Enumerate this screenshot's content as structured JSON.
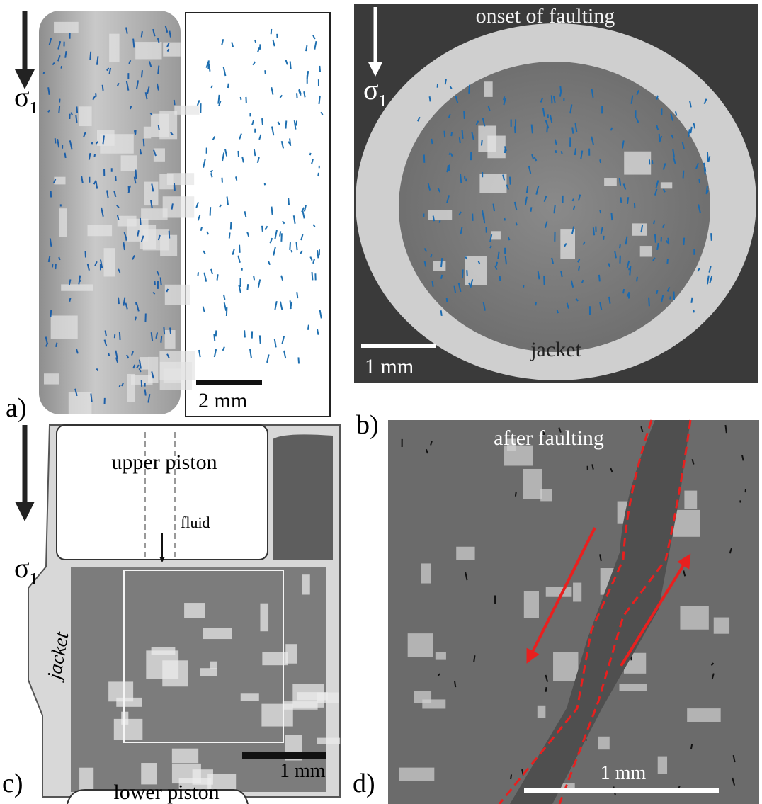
{
  "panels": [
    {
      "label": "a)",
      "stress": {
        "symbol": "σ",
        "subscript": "1"
      },
      "scale_bar": "2 mm"
    },
    {
      "label": "b)",
      "title": "onset of faulting",
      "stress": {
        "symbol": "σ",
        "subscript": "1"
      },
      "scale_bar": "1 mm",
      "annotation": "jacket"
    },
    {
      "label": "c)",
      "stress": {
        "symbol": "σ",
        "subscript": "1"
      },
      "annotations": [
        "upper piston",
        "fluid",
        "jacket",
        "lower piston"
      ],
      "scale_bar": "1 mm"
    },
    {
      "label": "d)",
      "title": "after faulting",
      "scale_bar": "1 mm"
    }
  ]
}
